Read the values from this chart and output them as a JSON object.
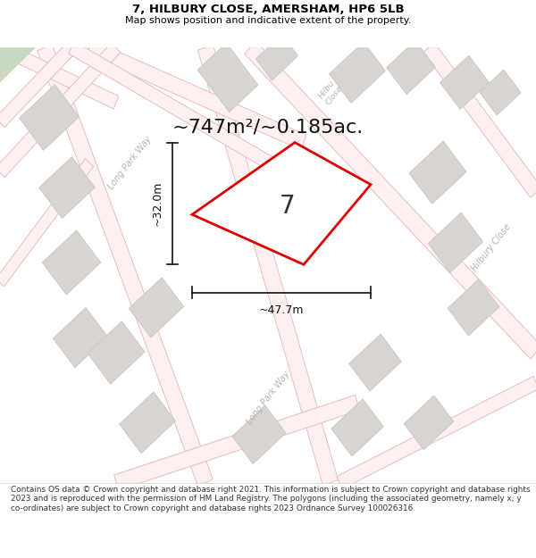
{
  "title": "7, HILBURY CLOSE, AMERSHAM, HP6 5LB",
  "subtitle": "Map shows position and indicative extent of the property.",
  "area_text": "~747m²/~0.185ac.",
  "number_label": "7",
  "dim_width": "~47.7m",
  "dim_height": "~32.0m",
  "footer": "Contains OS data © Crown copyright and database right 2021. This information is subject to Crown copyright and database rights 2023 and is reproduced with the permission of HM Land Registry. The polygons (including the associated geometry, namely x, y co-ordinates) are subject to Crown copyright and database rights 2023 Ordnance Survey 100026316.",
  "bg_color": "#ffffff",
  "map_bg": "#f7f4f1",
  "road_line_color": "#e8b4b4",
  "road_fill_color": "#fdf0f0",
  "building_color": "#d8d4d0",
  "building_edge": "#c8c4c0",
  "plot_fill": "#ffffff",
  "plot_stroke": "#dd0000",
  "green_color": "#c8d8c0",
  "road_label_color": "#b0a8a8",
  "title_color": "#000000",
  "footer_color": "#333333",
  "dim_line_color": "#111111"
}
